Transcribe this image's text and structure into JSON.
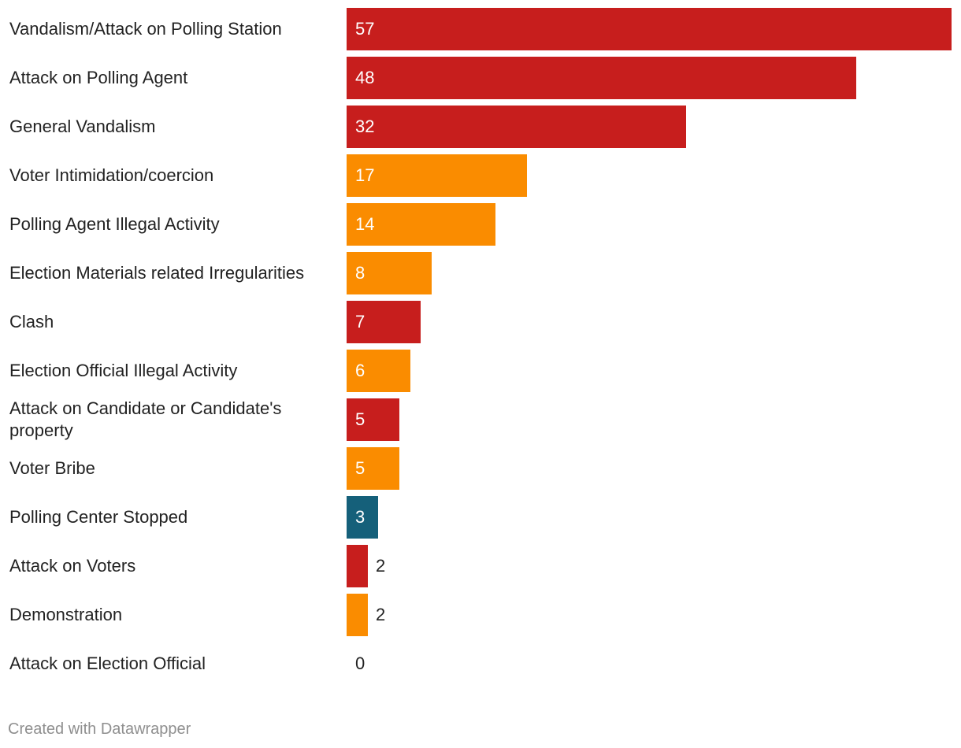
{
  "chart_data": {
    "type": "bar",
    "orientation": "horizontal",
    "categories": [
      "Vandalism/Attack on Polling Station",
      "Attack on Polling Agent",
      "General Vandalism",
      "Voter Intimidation/coercion",
      "Polling Agent Illegal Activity",
      "Election Materials related Irregularities",
      "Clash",
      "Election Official Illegal Activity",
      "Attack on Candidate or Candidate's property",
      "Voter Bribe",
      "Polling Center Stopped",
      "Attack on Voters",
      "Demonstration",
      "Attack on Election Official"
    ],
    "values": [
      57,
      48,
      32,
      17,
      14,
      8,
      7,
      6,
      5,
      5,
      3,
      2,
      2,
      0
    ],
    "bar_colors": [
      "#c71e1d",
      "#c71e1d",
      "#c71e1d",
      "#fa8c00",
      "#fa8c00",
      "#fa8c00",
      "#c71e1d",
      "#fa8c00",
      "#c71e1d",
      "#fa8c00",
      "#15607a",
      "#c71e1d",
      "#fa8c00",
      "#c71e1d"
    ],
    "xlim": [
      0,
      57
    ],
    "grid": false,
    "legend": "none",
    "data_labels": true
  },
  "footer": {
    "credit": "Created with Datawrapper"
  }
}
